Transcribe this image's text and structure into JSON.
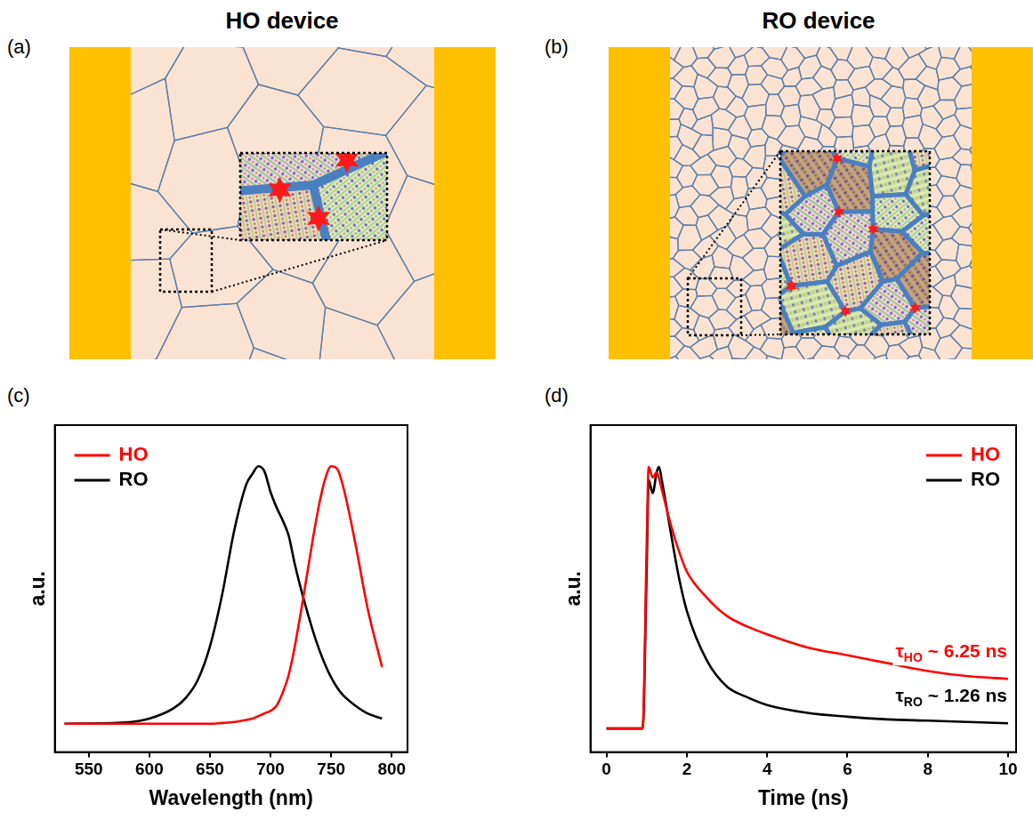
{
  "diagrams": [
    {
      "panel": "(a)",
      "title": "HO device"
    },
    {
      "panel": "(b)",
      "title": "RO device"
    }
  ],
  "chart_data": [
    {
      "panel": "(c)",
      "type": "line",
      "x_label": "Wavelength (nm)",
      "y_label": "a.u.",
      "x": [
        530,
        580,
        600,
        620,
        630,
        640,
        650,
        660,
        670,
        680,
        685,
        690,
        695,
        700,
        705,
        710,
        715,
        720,
        727,
        735,
        740,
        745,
        750,
        755,
        760,
        770,
        780,
        792
      ],
      "series": [
        {
          "name": "HO",
          "color": "#ff0000",
          "values": [
            0,
            0,
            0,
            0,
            0,
            0,
            0,
            0.003,
            0.007,
            0.015,
            0.02,
            0.03,
            0.04,
            0.05,
            0.07,
            0.12,
            0.19,
            0.3,
            0.49,
            0.72,
            0.85,
            0.95,
            1.0,
            0.99,
            0.92,
            0.7,
            0.45,
            0.22
          ]
        },
        {
          "name": "RO",
          "color": "#000000",
          "values": [
            0,
            0.005,
            0.02,
            0.06,
            0.1,
            0.17,
            0.3,
            0.5,
            0.75,
            0.93,
            0.97,
            1.0,
            0.98,
            0.9,
            0.84,
            0.79,
            0.73,
            0.62,
            0.49,
            0.36,
            0.29,
            0.23,
            0.18,
            0.14,
            0.11,
            0.07,
            0.04,
            0.02
          ]
        }
      ],
      "xlim": [
        522,
        813
      ],
      "xticks": [
        550,
        600,
        650,
        700,
        750,
        800
      ],
      "ylim": [
        -0.11,
        1.16
      ],
      "yticks": [],
      "tick_labels": "x",
      "grid": false,
      "legend": "upper left"
    },
    {
      "panel": "(d)",
      "type": "line",
      "x_label": "Time (ns)",
      "y_label": "a.u.",
      "x": [
        0,
        0.9,
        1.0,
        1.05,
        1.15,
        1.25,
        1.3,
        1.4,
        1.6,
        1.8,
        2,
        2.5,
        3,
        3.5,
        4,
        5,
        6,
        7,
        8,
        9,
        10
      ],
      "series": [
        {
          "name": "HO",
          "color": "#ff0000",
          "values": [
            0,
            0,
            0.7,
            1.0,
            0.96,
            0.98,
            0.96,
            0.9,
            0.78,
            0.68,
            0.6,
            0.5,
            0.43,
            0.39,
            0.36,
            0.31,
            0.28,
            0.25,
            0.22,
            0.2,
            0.19
          ],
          "annotation": {
            "symbol": "τ",
            "subscript": "HO",
            "text": "~ 6.25 ns"
          }
        },
        {
          "name": "RO",
          "color": "#000000",
          "values": [
            0,
            0,
            0.6,
            0.95,
            0.9,
            0.98,
            1.0,
            0.93,
            0.75,
            0.58,
            0.45,
            0.26,
            0.16,
            0.12,
            0.09,
            0.06,
            0.045,
            0.035,
            0.03,
            0.025,
            0.02
          ],
          "annotation": {
            "symbol": "τ",
            "subscript": "RO",
            "text": "~ 1.26 ns"
          }
        }
      ],
      "xlim": [
        -0.4,
        10.2
      ],
      "xticks": [
        0,
        2,
        4,
        6,
        8,
        10
      ],
      "ylim": [
        -0.09,
        1.16
      ],
      "yticks": [],
      "tick_labels": "x",
      "grid": false,
      "legend": "upper right"
    }
  ]
}
